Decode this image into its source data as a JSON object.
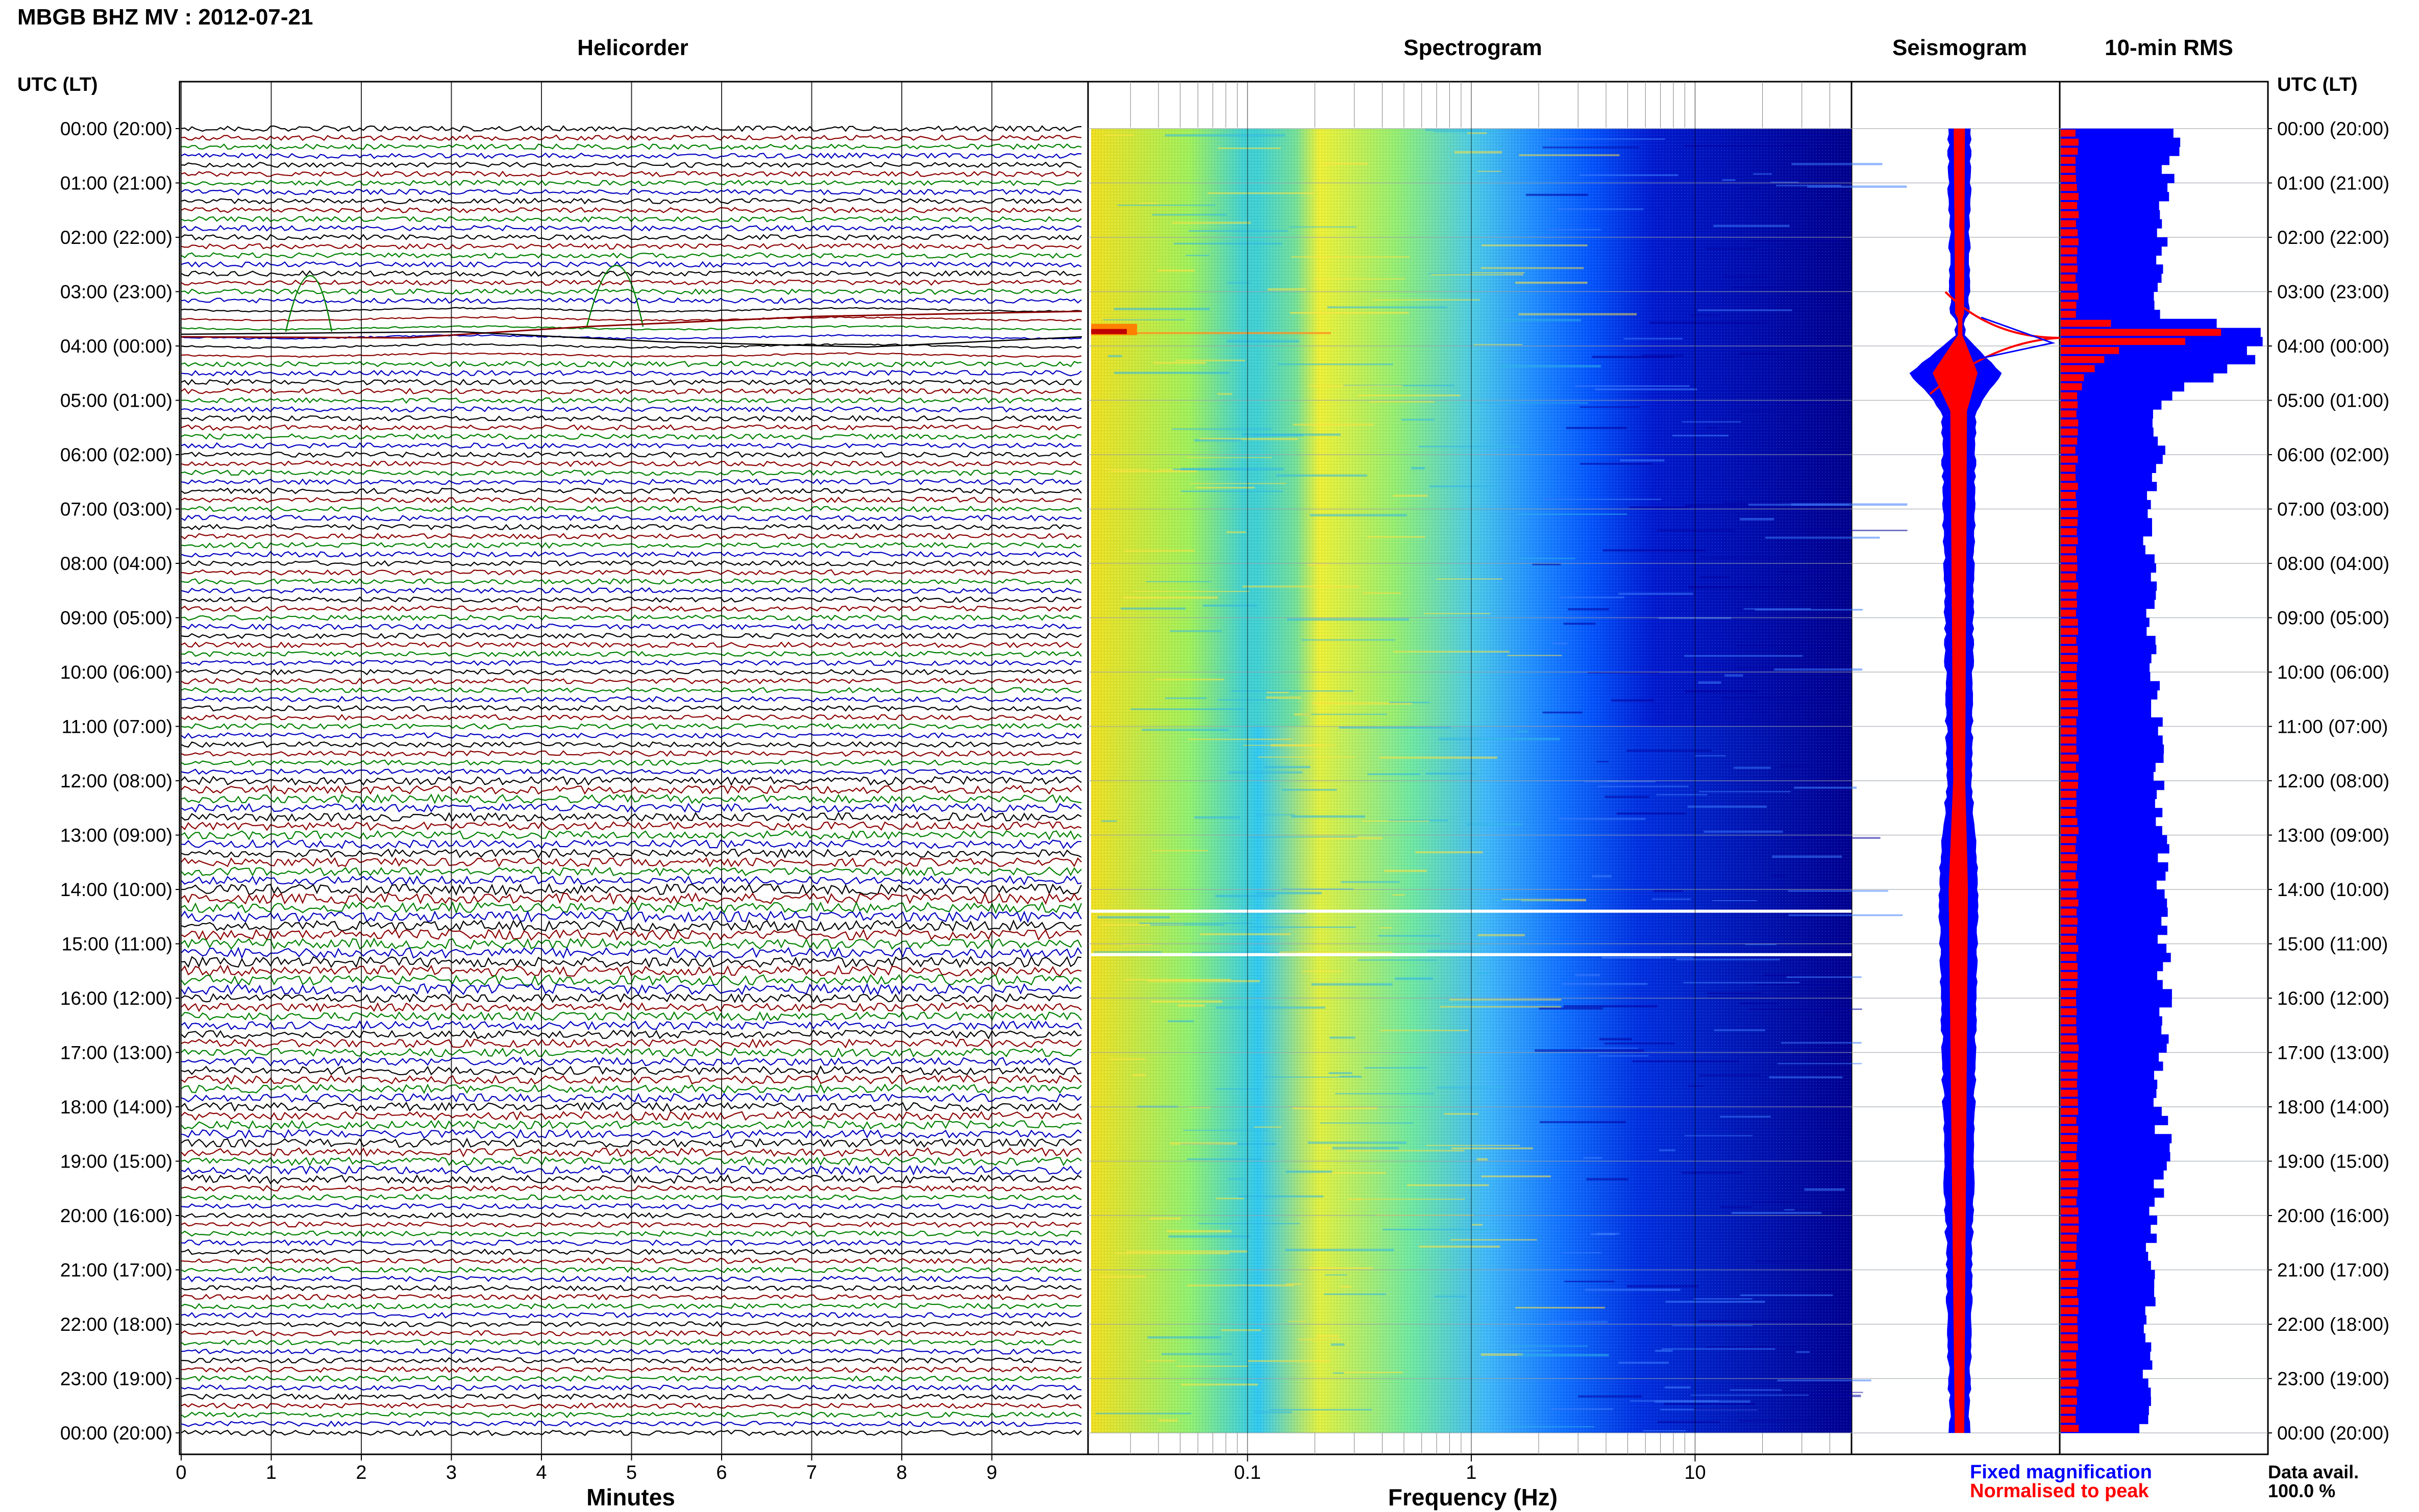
{
  "header": {
    "station_title": "MBGB BHZ MV : 2012-07-21"
  },
  "panels": {
    "helicorder_title": "Helicorder",
    "spectrogram_title": "Spectrogram",
    "seismogram_title": "Seismogram",
    "rms_title": "10-min RMS"
  },
  "axis": {
    "utc_label_left": "UTC (LT)",
    "utc_label_right": "UTC (LT)",
    "minutes_label": "Minutes",
    "frequency_label": "Frequency (Hz)"
  },
  "time_labels": [
    "00:00 (20:00)",
    "01:00 (21:00)",
    "02:00 (22:00)",
    "03:00 (23:00)",
    "04:00 (00:00)",
    "05:00 (01:00)",
    "06:00 (02:00)",
    "07:00 (03:00)",
    "08:00 (04:00)",
    "09:00 (05:00)",
    "10:00 (06:00)",
    "11:00 (07:00)",
    "12:00 (08:00)",
    "13:00 (09:00)",
    "14:00 (10:00)",
    "15:00 (11:00)",
    "16:00 (12:00)",
    "17:00 (13:00)",
    "18:00 (14:00)",
    "19:00 (15:00)",
    "20:00 (16:00)",
    "21:00 (17:00)",
    "22:00 (18:00)",
    "23:00 (19:00)",
    "00:00 (20:00)"
  ],
  "minute_ticks": [
    "0",
    "1",
    "2",
    "3",
    "4",
    "5",
    "6",
    "7",
    "8",
    "9"
  ],
  "freq_ticks": [
    "0.1",
    "1",
    "10"
  ],
  "legend": {
    "fixed_label": "Fixed magnification",
    "normalised_label": "Normalised to peak",
    "fixed_color": "#0000ff",
    "normalised_color": "#ff0000"
  },
  "data_avail": {
    "label": "Data avail.",
    "value": "100.0 %"
  },
  "chart_data": {
    "type": "heatmap",
    "title": "MBGB BHZ MV : 2012-07-21",
    "helicorder": {
      "xlabel": "Minutes",
      "xlim": [
        0,
        10
      ],
      "rows_per_hour": 6,
      "hours": 24,
      "trace_colors": [
        "#000000",
        "#8b0000",
        "#008000",
        "#0000c0"
      ],
      "events_hour": [
        3.4,
        3.6
      ]
    },
    "spectrogram": {
      "xlabel": "Frequency (Hz)",
      "xscale": "log",
      "xlim": [
        0.02,
        50
      ],
      "colormap": "jet",
      "data_gaps_hour": [
        14.4,
        15.2
      ],
      "event_hour": 3.8
    },
    "seismogram": {
      "series": [
        {
          "name": "Fixed magnification",
          "color": "#0000ff"
        },
        {
          "name": "Normalised to peak",
          "color": "#ff0000"
        }
      ],
      "peak_hour": 3.85
    },
    "rms_10min": {
      "hours": [
        0,
        0.5,
        1,
        1.5,
        2,
        2.5,
        3,
        3.5,
        3.67,
        3.83,
        4,
        4.17,
        4.33,
        4.5,
        4.67,
        5,
        5.5,
        6,
        7,
        8,
        9,
        10,
        11,
        12,
        12.5,
        13,
        14,
        15,
        16,
        17,
        18,
        19,
        20,
        21,
        22,
        23,
        23.67,
        24
      ],
      "fixed_relative": [
        0.55,
        0.55,
        0.52,
        0.5,
        0.5,
        0.48,
        0.48,
        0.48,
        1.0,
        0.95,
        1.0,
        0.95,
        0.9,
        0.8,
        0.65,
        0.48,
        0.45,
        0.48,
        0.42,
        0.45,
        0.42,
        0.45,
        0.48,
        0.48,
        0.5,
        0.5,
        0.48,
        0.5,
        0.52,
        0.5,
        0.48,
        0.52,
        0.45,
        0.45,
        0.43,
        0.42,
        0.46,
        0.4
      ],
      "normalised_relative": [
        0.08,
        0.08,
        0.08,
        0.08,
        0.08,
        0.08,
        0.08,
        0.08,
        0.45,
        1.0,
        0.3,
        0.25,
        0.2,
        0.15,
        0.1,
        0.08,
        0.08,
        0.08,
        0.08,
        0.08,
        0.08,
        0.08,
        0.08,
        0.08,
        0.08,
        0.08,
        0.08,
        0.08,
        0.08,
        0.08,
        0.08,
        0.08,
        0.08,
        0.08,
        0.08,
        0.08,
        0.08,
        0.08
      ]
    }
  }
}
